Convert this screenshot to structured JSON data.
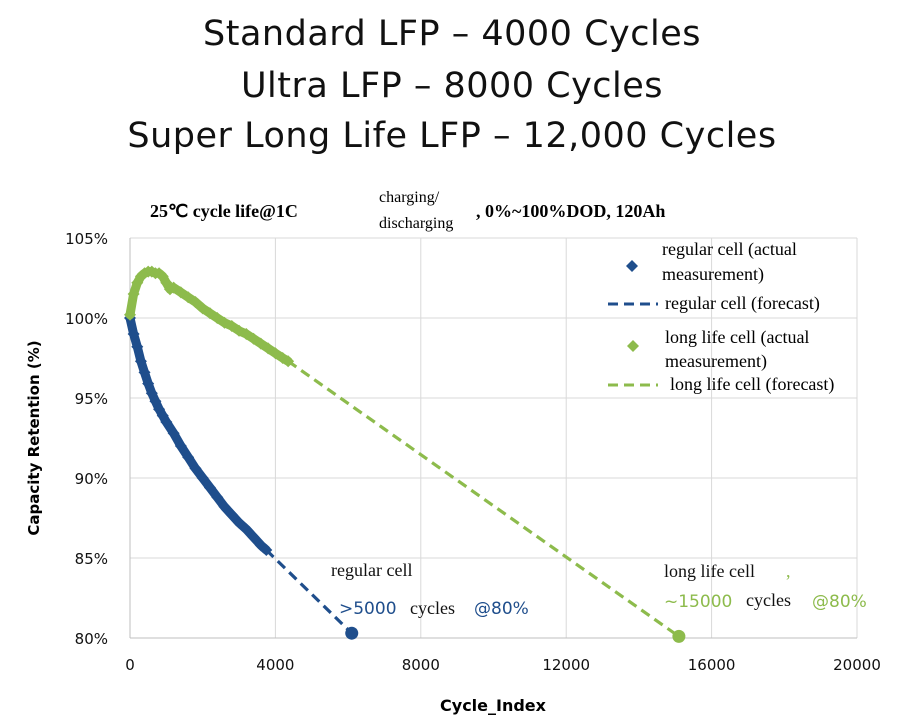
{
  "headlines": [
    "Standard LFP – 4000 Cycles",
    "Ultra LFP – 8000 Cycles",
    "Super Long Life LFP – 12,000 Cycles"
  ],
  "chart_data": {
    "type": "scatter",
    "title_main": "25℃ cycle life@1C",
    "title_sup": "charging/",
    "title_sub": "discharging",
    "title_tail": ", 0%~100%DOD, 120Ah",
    "xlabel": "Cycle_Index",
    "ylabel": "Capacity Retention (%)",
    "xlim": [
      0,
      20000
    ],
    "ylim": [
      80,
      105
    ],
    "x_ticks": [
      0,
      4000,
      8000,
      12000,
      16000,
      20000
    ],
    "x_tick_labels": [
      "0",
      "4000",
      "8000",
      "12000",
      "16000",
      "20000"
    ],
    "y_ticks": [
      80,
      85,
      90,
      95,
      100,
      105
    ],
    "y_tick_labels": [
      "80%",
      "85%",
      "90%",
      "95%",
      "100%",
      "105%"
    ],
    "colors": {
      "regular": "#1f4e8c",
      "longlife": "#8dbb4c"
    },
    "series": [
      {
        "name": "regular cell (actual measurement)",
        "kind": "points",
        "color": "#1f4e8c",
        "x": [
          0,
          100,
          200,
          300,
          400,
          500,
          600,
          700,
          800,
          900,
          1000,
          1200,
          1400,
          1600,
          1800,
          2000,
          2200,
          2400,
          2600,
          2800,
          3000,
          3200,
          3400,
          3600,
          3750
        ],
        "y": [
          100.0,
          99.0,
          98.2,
          97.3,
          96.6,
          95.9,
          95.3,
          94.8,
          94.3,
          93.9,
          93.5,
          92.8,
          92.0,
          91.3,
          90.6,
          90.0,
          89.4,
          88.8,
          88.2,
          87.7,
          87.2,
          86.8,
          86.3,
          85.8,
          85.5
        ]
      },
      {
        "name": "regular cell (forecast)",
        "kind": "dashed",
        "color": "#1f4e8c",
        "x": [
          3750,
          6100
        ],
        "y": [
          85.5,
          80.3
        ]
      },
      {
        "name": "long life cell (actual measurement)",
        "kind": "points",
        "color": "#8dbb4c",
        "x": [
          0,
          100,
          200,
          300,
          400,
          500,
          600,
          700,
          800,
          900,
          1000,
          1100,
          1200,
          1400,
          1600,
          1800,
          2000,
          2200,
          2400,
          2600,
          2800,
          3000,
          3200,
          3400,
          3600,
          3800,
          4000,
          4200,
          4350
        ],
        "y": [
          100.2,
          101.5,
          102.2,
          102.6,
          102.8,
          102.9,
          102.9,
          102.8,
          102.8,
          102.6,
          102.2,
          101.8,
          101.9,
          101.6,
          101.3,
          101.0,
          100.6,
          100.3,
          100.0,
          99.7,
          99.5,
          99.2,
          99.0,
          98.7,
          98.4,
          98.1,
          97.8,
          97.5,
          97.3
        ]
      },
      {
        "name": "long life cell (forecast)",
        "kind": "dashed",
        "color": "#8dbb4c",
        "x": [
          4350,
          15100
        ],
        "y": [
          97.3,
          80.1
        ]
      }
    ],
    "endpoints": [
      {
        "series": "regular",
        "x": 6100,
        "y": 80.3
      },
      {
        "series": "longlife",
        "x": 15100,
        "y": 80.1
      }
    ],
    "legend": {
      "placement": "top-right",
      "items": [
        {
          "line1": "regular cell (actual",
          "line2": "measurement)"
        },
        {
          "line1": "regular cell (forecast)"
        },
        {
          "line1": "long life cell (actual",
          "line2": "measurement)"
        },
        {
          "line1": "long life cell (forecast)"
        }
      ]
    },
    "annotations": {
      "regular": {
        "title": "regular cell",
        "value": ">5000",
        "unit": "cycles",
        "tail": "@80%"
      },
      "longlife": {
        "title": "long life cell",
        "comma": ",",
        "value": "~15000",
        "unit": "cycles",
        "tail": "@80%"
      }
    }
  }
}
